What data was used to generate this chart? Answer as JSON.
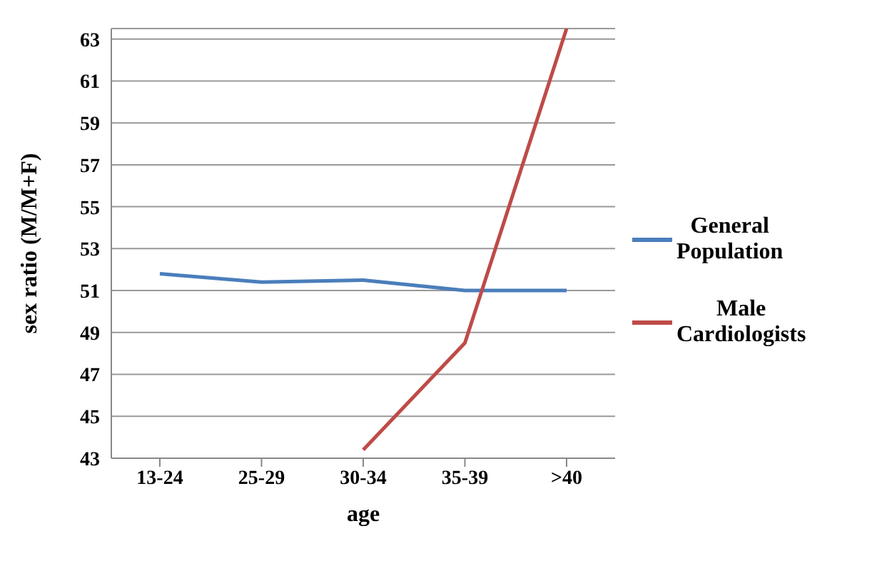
{
  "chart_data": {
    "type": "line",
    "xlabel": "age",
    "ylabel": "sex ratio (M/M+F)",
    "categories": [
      "13-24",
      "25-29",
      "30-34",
      "35-39",
      ">40"
    ],
    "series": [
      {
        "name": "General Population",
        "color": "#4a7ebb",
        "values": [
          51.8,
          51.4,
          51.5,
          51.0,
          51.0
        ]
      },
      {
        "name": "Male Cardiologists",
        "color": "#be4b48",
        "values": [
          null,
          null,
          43.4,
          48.5,
          63.5
        ]
      }
    ],
    "ylim": [
      43,
      63.5
    ],
    "yticks": [
      43,
      45,
      47,
      49,
      51,
      53,
      55,
      57,
      59,
      61,
      63
    ],
    "grid": "y",
    "legend": "right",
    "marker": "none",
    "line_style": "solid"
  }
}
